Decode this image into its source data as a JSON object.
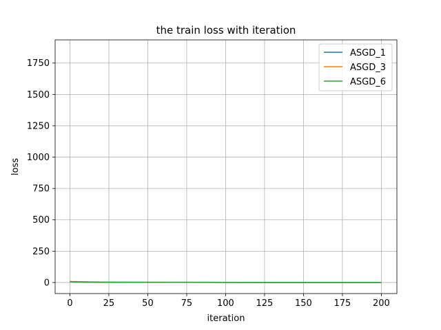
{
  "chart_data": {
    "type": "line",
    "title": "the train loss with iteration",
    "xlabel": "iteration",
    "ylabel": "loss",
    "xlim": [
      -9.5,
      210
    ],
    "ylim": [
      -88,
      1935
    ],
    "xticks": [
      0,
      25,
      50,
      75,
      100,
      125,
      150,
      175,
      200
    ],
    "yticks": [
      0,
      250,
      500,
      750,
      1000,
      1250,
      1500,
      1750
    ],
    "grid": true,
    "legend_position": "top-right",
    "series": [
      {
        "name": "ASGD_1",
        "color": "#1f77b4",
        "x": [
          0,
          5,
          10,
          25,
          50,
          75,
          100,
          125,
          150,
          175,
          200
        ],
        "y": [
          6,
          4,
          3,
          2,
          1.5,
          1.2,
          1,
          1,
          0.9,
          0.9,
          0.8
        ]
      },
      {
        "name": "ASGD_3",
        "color": "#ff7f0e",
        "x": [
          0,
          1,
          5,
          10,
          25,
          50,
          75,
          100,
          125,
          150,
          175,
          200
        ],
        "y": [
          10,
          8,
          6,
          5,
          3,
          2,
          1.5,
          1.2,
          1,
          1,
          0.9,
          0.9
        ]
      },
      {
        "name": "ASGD_6",
        "color": "#2ca02c",
        "x": [
          0,
          5,
          10,
          25,
          50,
          75,
          100,
          125,
          150,
          175,
          200
        ],
        "y": [
          7,
          5,
          4,
          2.5,
          1.8,
          1.3,
          1.1,
          1,
          0.9,
          0.9,
          0.8
        ]
      }
    ]
  }
}
